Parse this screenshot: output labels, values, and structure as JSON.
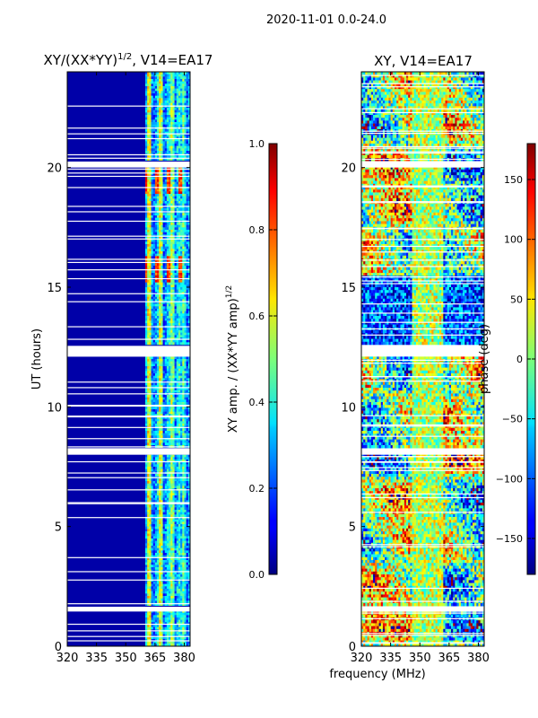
{
  "chart_data": [
    {
      "type": "heatmap",
      "suptitle": "2020-11-01 0.0-24.0",
      "title_main": "XY/(XX*YY)",
      "title_sup": "1/2",
      "title_rest": ", V14=EA17",
      "ylabel": "UT (hours)",
      "xticks": [
        320,
        335,
        350,
        365,
        380
      ],
      "xlim": [
        320,
        383
      ],
      "yticks": [
        0,
        5,
        10,
        15,
        20
      ],
      "ylim": [
        0,
        24
      ],
      "colorbar": {
        "label_main": "XY amp. / (XX*YY amp)",
        "label_sup": "1/2",
        "ticks": [
          0.0,
          0.2,
          0.4,
          0.6,
          0.8,
          1.0
        ],
        "tick_labels": [
          "0.0",
          "0.2",
          "0.4",
          "0.6",
          "0.8",
          "1.0"
        ],
        "range": [
          0,
          1
        ]
      },
      "data_gaps_ut_hours": [
        [
          1.45,
          1.65
        ],
        [
          8.0,
          8.25
        ],
        [
          12.1,
          12.55
        ],
        [
          20.0,
          20.25
        ]
      ],
      "active_band_mhz": [
        360,
        383
      ]
    },
    {
      "type": "heatmap",
      "title": "XY, V14=EA17",
      "xlabel": "frequency (MHz)",
      "xticks": [
        320,
        335,
        350,
        365,
        380
      ],
      "xlim": [
        320,
        383
      ],
      "yticks": [
        0,
        5,
        10,
        15,
        20
      ],
      "ylim": [
        0,
        24
      ],
      "colorbar": {
        "label": "phase (deg)",
        "ticks": [
          150,
          100,
          50,
          0,
          -50,
          -100,
          -150
        ],
        "tick_labels": [
          "150",
          "100",
          "50",
          "0",
          "−50",
          "−100",
          "−150"
        ],
        "range": [
          -180,
          180
        ]
      },
      "data_gaps_ut_hours": [
        [
          1.45,
          1.65
        ],
        [
          8.0,
          8.25
        ],
        [
          12.1,
          12.55
        ],
        [
          20.0,
          20.25
        ]
      ]
    }
  ]
}
